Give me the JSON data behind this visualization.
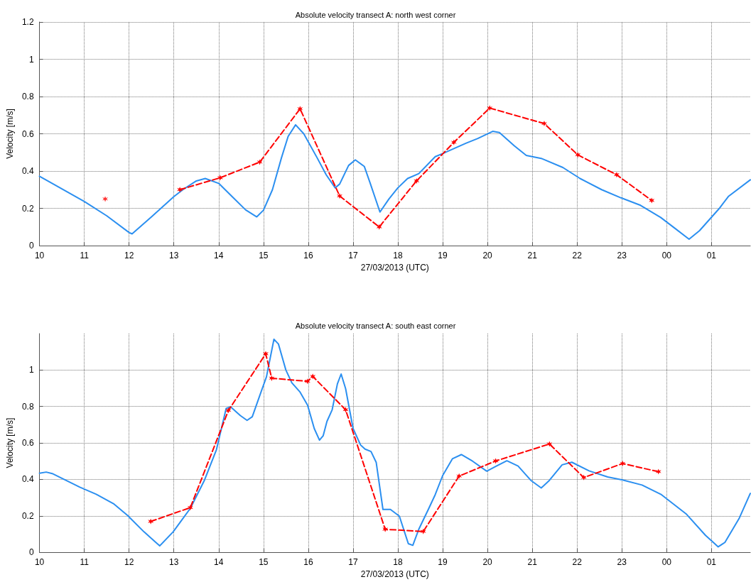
{
  "chart_data": [
    {
      "type": "line",
      "title": "Absolute velocity transect A: north west corner",
      "xlabel": "27/03/2013 (UTC)",
      "ylabel": "Velocity [m/s]",
      "xlim": [
        "2013-03-27T10:00",
        "2013-03-28T01:52"
      ],
      "xticks": [
        {
          "value": "2013-03-27T10:00",
          "label": "10"
        },
        {
          "value": "2013-03-27T11:00",
          "label": "11"
        },
        {
          "value": "2013-03-27T12:00",
          "label": "12"
        },
        {
          "value": "2013-03-27T13:00",
          "label": "13"
        },
        {
          "value": "2013-03-27T14:00",
          "label": "14"
        },
        {
          "value": "2013-03-27T15:00",
          "label": "15"
        },
        {
          "value": "2013-03-27T16:00",
          "label": "16"
        },
        {
          "value": "2013-03-27T17:00",
          "label": "17"
        },
        {
          "value": "2013-03-27T18:00",
          "label": "18"
        },
        {
          "value": "2013-03-27T19:00",
          "label": "19"
        },
        {
          "value": "2013-03-27T20:00",
          "label": "20"
        },
        {
          "value": "2013-03-27T21:00",
          "label": "21"
        },
        {
          "value": "2013-03-27T22:00",
          "label": "22"
        },
        {
          "value": "2013-03-27T23:00",
          "label": "23"
        },
        {
          "value": "2013-03-28T00:00",
          "label": "00"
        },
        {
          "value": "2013-03-28T01:00",
          "label": "01"
        }
      ],
      "ylim": [
        0,
        1.2
      ],
      "yticks": [
        0,
        0.2,
        0.4,
        0.6,
        0.8,
        1,
        1.2
      ],
      "grid": true,
      "series": [
        {
          "color": "#2b8ff0",
          "marker": "none",
          "line_style": "solid",
          "x": [
            "2013-03-27T10:00",
            "2013-03-27T11:00",
            "2013-03-27T11:30",
            "2013-03-27T12:00",
            "2013-03-27T12:04",
            "2013-03-27T12:30",
            "2013-03-27T13:00",
            "2013-03-27T13:12",
            "2013-03-27T13:30",
            "2013-03-27T13:42",
            "2013-03-27T14:00",
            "2013-03-27T14:18",
            "2013-03-27T14:36",
            "2013-03-27T14:51",
            "2013-03-27T15:00",
            "2013-03-27T15:12",
            "2013-03-27T15:24",
            "2013-03-27T15:33",
            "2013-03-27T15:43",
            "2013-03-27T15:54",
            "2013-03-27T16:12",
            "2013-03-27T16:24",
            "2013-03-27T16:36",
            "2013-03-27T16:42",
            "2013-03-27T16:54",
            "2013-03-27T17:03",
            "2013-03-27T17:15",
            "2013-03-27T17:23",
            "2013-03-27T17:36",
            "2013-03-27T17:48",
            "2013-03-27T18:00",
            "2013-03-27T18:13",
            "2013-03-27T18:28",
            "2013-03-27T18:50",
            "2013-03-27T19:00",
            "2013-03-27T19:31",
            "2013-03-27T19:47",
            "2013-03-27T20:07",
            "2013-03-27T20:16",
            "2013-03-27T20:36",
            "2013-03-27T20:52",
            "2013-03-27T21:12",
            "2013-03-27T21:41",
            "2013-03-27T22:04",
            "2013-03-27T22:33",
            "2013-03-27T22:59",
            "2013-03-27T23:25",
            "2013-03-27T23:52",
            "2013-03-28T00:11",
            "2013-03-28T00:30",
            "2013-03-28T00:44",
            "2013-03-28T01:10",
            "2013-03-28T01:23",
            "2013-03-28T01:52"
          ],
          "values": [
            0.372,
            0.237,
            0.16,
            0.07,
            0.063,
            0.154,
            0.263,
            0.3,
            0.347,
            0.36,
            0.334,
            0.263,
            0.192,
            0.154,
            0.19,
            0.3,
            0.47,
            0.586,
            0.648,
            0.6,
            0.47,
            0.38,
            0.31,
            0.33,
            0.43,
            0.46,
            0.425,
            0.334,
            0.18,
            0.25,
            0.31,
            0.36,
            0.386,
            0.477,
            0.494,
            0.549,
            0.575,
            0.613,
            0.607,
            0.535,
            0.484,
            0.468,
            0.419,
            0.36,
            0.3,
            0.256,
            0.216,
            0.151,
            0.093,
            0.034,
            0.08,
            0.197,
            0.265,
            0.353
          ]
        },
        {
          "type": "scatter",
          "color": "#ff0000",
          "marker": "cross",
          "x": [
            "2013-03-27T11:28"
          ],
          "values": [
            0.25
          ]
        },
        {
          "color": "#ff0000",
          "marker": "cross",
          "line_style": "dashed",
          "x": [
            "2013-03-27T13:08",
            "2013-03-27T14:02",
            "2013-03-27T14:55",
            "2013-03-27T15:49",
            "2013-03-27T16:42",
            "2013-03-27T17:35",
            "2013-03-27T18:25",
            "2013-03-27T19:15",
            "2013-03-27T20:03",
            "2013-03-27T21:16",
            "2013-03-27T22:01",
            "2013-03-27T22:53",
            "2013-03-27T23:40"
          ],
          "values": [
            0.3,
            0.364,
            0.448,
            0.734,
            0.266,
            0.1,
            0.347,
            0.554,
            0.738,
            0.655,
            0.487,
            0.38,
            0.242
          ]
        }
      ]
    },
    {
      "type": "line",
      "title": "Absolute velocity transect A: south east corner",
      "xlabel": "27/03/2013 (UTC)",
      "ylabel": "Velocity [m/s]",
      "xlim": [
        "2013-03-27T10:00",
        "2013-03-28T01:52"
      ],
      "xticks": [
        {
          "value": "2013-03-27T10:00",
          "label": "10"
        },
        {
          "value": "2013-03-27T11:00",
          "label": "11"
        },
        {
          "value": "2013-03-27T12:00",
          "label": "12"
        },
        {
          "value": "2013-03-27T13:00",
          "label": "13"
        },
        {
          "value": "2013-03-27T14:00",
          "label": "14"
        },
        {
          "value": "2013-03-27T15:00",
          "label": "15"
        },
        {
          "value": "2013-03-27T16:00",
          "label": "16"
        },
        {
          "value": "2013-03-27T17:00",
          "label": "17"
        },
        {
          "value": "2013-03-27T18:00",
          "label": "18"
        },
        {
          "value": "2013-03-27T19:00",
          "label": "19"
        },
        {
          "value": "2013-03-27T20:00",
          "label": "20"
        },
        {
          "value": "2013-03-27T21:00",
          "label": "21"
        },
        {
          "value": "2013-03-27T22:00",
          "label": "22"
        },
        {
          "value": "2013-03-27T23:00",
          "label": "23"
        },
        {
          "value": "2013-03-28T00:00",
          "label": "00"
        },
        {
          "value": "2013-03-28T01:00",
          "label": "01"
        }
      ],
      "ylim": [
        0,
        1.2
      ],
      "yticks": [
        0,
        0.2,
        0.4,
        0.6,
        0.8,
        1
      ],
      "grid": true,
      "series": [
        {
          "color": "#2b8ff0",
          "marker": "none",
          "line_style": "solid",
          "x": [
            "2013-03-27T10:00",
            "2013-03-27T10:09",
            "2013-03-27T10:17",
            "2013-03-27T10:54",
            "2013-03-27T11:16",
            "2013-03-27T11:39",
            "2013-03-27T11:58",
            "2013-03-27T12:20",
            "2013-03-27T12:41",
            "2013-03-27T12:59",
            "2013-03-27T13:22",
            "2013-03-27T13:41",
            "2013-03-27T13:57",
            "2013-03-27T14:10",
            "2013-03-27T14:16",
            "2013-03-27T14:29",
            "2013-03-27T14:38",
            "2013-03-27T14:45",
            "2013-03-27T14:55",
            "2013-03-27T15:04",
            "2013-03-27T15:14",
            "2013-03-27T15:20",
            "2013-03-27T15:30",
            "2013-03-27T15:38",
            "2013-03-27T15:49",
            "2013-03-27T15:59",
            "2013-03-27T16:08",
            "2013-03-27T16:15",
            "2013-03-27T16:20",
            "2013-03-27T16:25",
            "2013-03-27T16:32",
            "2013-03-27T16:39",
            "2013-03-27T16:44",
            "2013-03-27T16:50",
            "2013-03-27T17:00",
            "2013-03-27T17:10",
            "2013-03-27T17:16",
            "2013-03-27T17:24",
            "2013-03-27T17:31",
            "2013-03-27T17:40",
            "2013-03-27T17:50",
            "2013-03-27T18:02",
            "2013-03-27T18:14",
            "2013-03-27T18:20",
            "2013-03-27T18:28",
            "2013-03-27T18:41",
            "2013-03-27T18:50",
            "2013-03-27T19:00",
            "2013-03-27T19:13",
            "2013-03-27T19:25",
            "2013-03-27T19:40",
            "2013-03-27T19:59",
            "2013-03-27T20:12",
            "2013-03-27T20:26",
            "2013-03-27T20:41",
            "2013-03-27T20:58",
            "2013-03-27T21:12",
            "2013-03-27T21:23",
            "2013-03-27T21:40",
            "2013-03-27T21:53",
            "2013-03-27T22:16",
            "2013-03-27T22:41",
            "2013-03-27T23:01",
            "2013-03-27T23:27",
            "2013-03-27T23:53",
            "2013-03-28T00:26",
            "2013-03-28T00:52",
            "2013-03-28T01:09",
            "2013-03-28T01:18",
            "2013-03-28T01:37",
            "2013-03-28T01:52"
          ],
          "values": [
            0.434,
            0.44,
            0.432,
            0.357,
            0.318,
            0.267,
            0.202,
            0.112,
            0.035,
            0.112,
            0.241,
            0.396,
            0.563,
            0.789,
            0.798,
            0.75,
            0.724,
            0.744,
            0.86,
            0.963,
            1.169,
            1.143,
            1.0,
            0.93,
            0.879,
            0.808,
            0.679,
            0.615,
            0.64,
            0.718,
            0.782,
            0.924,
            0.978,
            0.898,
            0.679,
            0.589,
            0.566,
            0.553,
            0.493,
            0.235,
            0.235,
            0.198,
            0.047,
            0.038,
            0.126,
            0.237,
            0.316,
            0.421,
            0.513,
            0.536,
            0.5,
            0.445,
            0.473,
            0.502,
            0.473,
            0.395,
            0.353,
            0.395,
            0.48,
            0.494,
            0.447,
            0.413,
            0.397,
            0.369,
            0.316,
            0.211,
            0.093,
            0.03,
            0.054,
            0.185,
            0.323
          ]
        },
        {
          "color": "#ff0000",
          "marker": "cross",
          "line_style": "dashed",
          "x": [
            "2013-03-27T12:29",
            "2013-03-27T13:22",
            "2013-03-27T14:13",
            "2013-03-27T15:03",
            "2013-03-27T15:11",
            "2013-03-27T15:59",
            "2013-03-27T16:06",
            "2013-03-27T16:50",
            "2013-03-27T17:43",
            "2013-03-27T18:34",
            "2013-03-27T19:22",
            "2013-03-27T20:11",
            "2013-03-27T21:23",
            "2013-03-27T22:09",
            "2013-03-27T23:01",
            "2013-03-27T23:49"
          ],
          "values": [
            0.169,
            0.245,
            0.778,
            1.089,
            0.955,
            0.938,
            0.965,
            0.782,
            0.126,
            0.114,
            0.418,
            0.501,
            0.594,
            0.41,
            0.487,
            0.442
          ]
        }
      ]
    }
  ]
}
